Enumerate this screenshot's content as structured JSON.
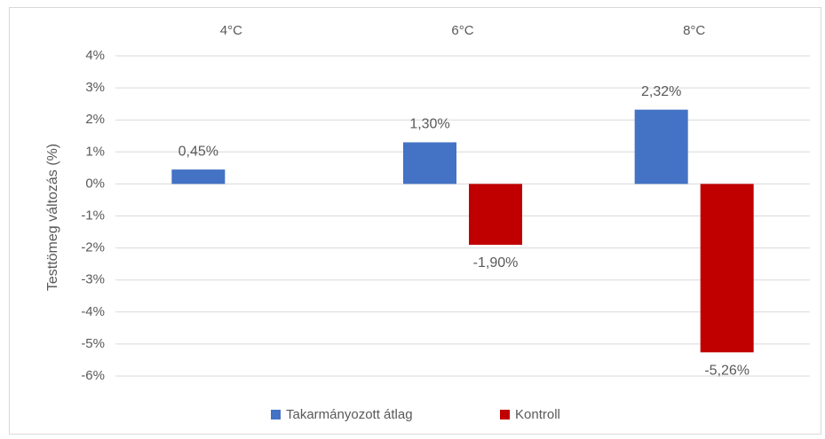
{
  "chart_data": {
    "type": "bar",
    "y_label": "Testtömeg változás (%)",
    "categories": [
      "4°C",
      "6°C",
      "8°C"
    ],
    "series": [
      {
        "name": "Takarmányozott átlag",
        "color": "#4472c4",
        "values": [
          0.45,
          1.3,
          2.32
        ],
        "value_labels": [
          "0,45%",
          "1,30%",
          "2,32%"
        ]
      },
      {
        "name": "Kontroll",
        "color": "#c00000",
        "values": [
          null,
          -1.9,
          -5.26
        ],
        "value_labels": [
          null,
          "-1,90%",
          "-5,26%"
        ]
      }
    ],
    "ylim": [
      -6,
      4
    ],
    "yticks": [
      {
        "value": -6,
        "label": "-6%"
      },
      {
        "value": -5,
        "label": "-5%"
      },
      {
        "value": -4,
        "label": "-4%"
      },
      {
        "value": -3,
        "label": "-3%"
      },
      {
        "value": -2,
        "label": "-2%"
      },
      {
        "value": -1,
        "label": "-1%"
      },
      {
        "value": 0,
        "label": "0%"
      },
      {
        "value": 1,
        "label": "1%"
      },
      {
        "value": 2,
        "label": "2%"
      },
      {
        "value": 3,
        "label": "3%"
      },
      {
        "value": 4,
        "label": "4%"
      }
    ],
    "grid": true,
    "legend": "bottom"
  }
}
